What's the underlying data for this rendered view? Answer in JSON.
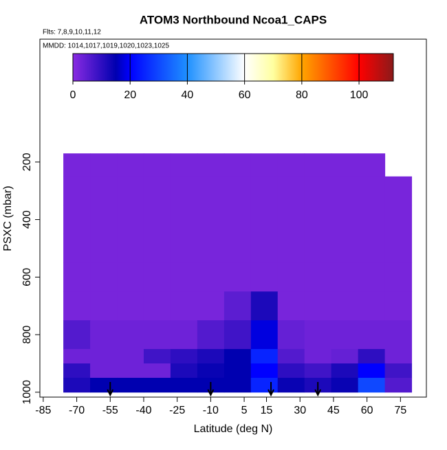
{
  "chart_data": {
    "type": "heatmap",
    "title": "ATOM3 Northbound Ncoa1_CAPS",
    "annotations": [
      "Flts: 7,8,9,10,11,12",
      "MMDD: 1014,1017,1019,1020,1023,1025"
    ],
    "xlabel": "Latitude (deg N)",
    "ylabel": "PSXC (mbar)",
    "xlim": [
      -86.5,
      86.6
    ],
    "xticks": [
      -85,
      -70,
      -55,
      -40,
      -25,
      -10,
      5,
      15,
      30,
      45,
      60,
      75
    ],
    "ylim": [
      1017,
      -227
    ],
    "yticks": [
      200,
      400,
      600,
      800,
      1000
    ],
    "x_edges": [
      -76,
      -64,
      -52,
      -40,
      -28,
      -16,
      -4,
      8,
      20,
      32,
      44,
      56,
      68,
      80
    ],
    "y_edges": [
      170,
      250,
      350,
      450,
      550,
      650,
      750,
      850,
      900,
      950,
      1000
    ],
    "values": [
      [
        2,
        2,
        2,
        2,
        2,
        2,
        2,
        2,
        2,
        2,
        2,
        2,
        null
      ],
      [
        2,
        2,
        2,
        2,
        2,
        2,
        2,
        2,
        2,
        2,
        2,
        2,
        2
      ],
      [
        2,
        2,
        2,
        2,
        2,
        2,
        2,
        2,
        2,
        2,
        2,
        2,
        2
      ],
      [
        2,
        2,
        2,
        2,
        2,
        2,
        2,
        2,
        2,
        2,
        2,
        2,
        2
      ],
      [
        2,
        2,
        2,
        2,
        2,
        2,
        2,
        2,
        2,
        2,
        2,
        2,
        2
      ],
      [
        2,
        2,
        2,
        2,
        2,
        2,
        5,
        12,
        2,
        2,
        2,
        2,
        2
      ],
      [
        6,
        3,
        3,
        3,
        3,
        6,
        8,
        18,
        4,
        3,
        3,
        3,
        3
      ],
      [
        3,
        3,
        3,
        8,
        10,
        12,
        15,
        25,
        6,
        3,
        4,
        10,
        3
      ],
      [
        10,
        3,
        3,
        3,
        12,
        14,
        15,
        20,
        10,
        8,
        12,
        20,
        8
      ],
      [
        12,
        15,
        15,
        15,
        15,
        15,
        15,
        25,
        14,
        12,
        14,
        30,
        6
      ]
    ],
    "arrows": [
      -55,
      -10,
      17,
      38
    ],
    "clim": [
      0,
      112
    ],
    "cticks": [
      0,
      20,
      40,
      60,
      80,
      100
    ],
    "colorscale": [
      [
        0,
        "#8a2be2"
      ],
      [
        15,
        "#0000b0"
      ],
      [
        20,
        "#0000ff"
      ],
      [
        40,
        "#1e90ff"
      ],
      [
        60,
        "#ffffff"
      ],
      [
        70,
        "#ffffa0"
      ],
      [
        80,
        "#ffa500"
      ],
      [
        100,
        "#ff0000"
      ],
      [
        112,
        "#8b1a1a"
      ]
    ]
  }
}
